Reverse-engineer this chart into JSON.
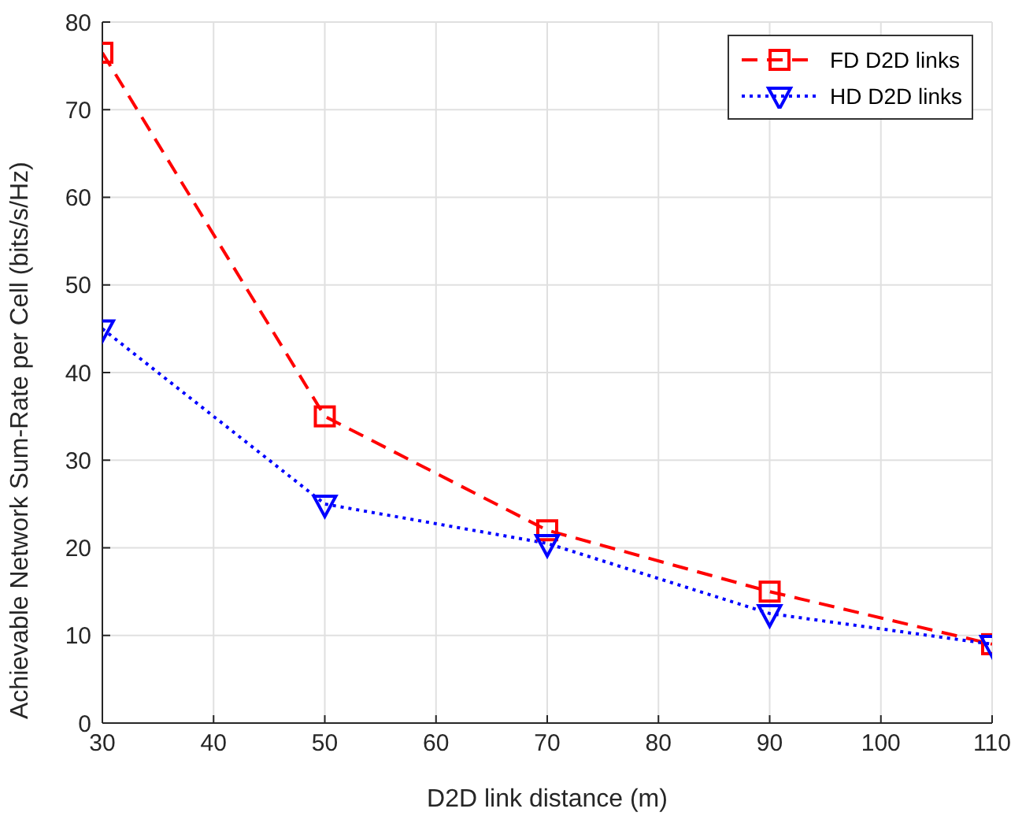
{
  "chart_data": {
    "type": "line",
    "xlabel": "D2D link distance (m)",
    "ylabel": "Achievable Network Sum-Rate per Cell (bits/s/Hz)",
    "x": [
      30,
      50,
      70,
      90,
      110
    ],
    "series": [
      {
        "name": "FD D2D links",
        "color": "#ff0000",
        "values": [
          76.5,
          35,
          22,
          15,
          9
        ],
        "marker": "square",
        "line_style": "dashed"
      },
      {
        "name": "HD D2D links",
        "color": "#0000ff",
        "values": [
          45,
          25,
          20.5,
          12.5,
          9
        ],
        "marker": "triangle",
        "line_style": "dotted"
      }
    ],
    "xlim": [
      30,
      110
    ],
    "xticks": [
      30,
      40,
      50,
      60,
      70,
      80,
      90,
      100,
      110
    ],
    "ylim": [
      0,
      80
    ],
    "yticks": [
      0,
      10,
      20,
      30,
      40,
      50,
      60,
      70,
      80
    ],
    "grid": true,
    "legend": "top right"
  }
}
